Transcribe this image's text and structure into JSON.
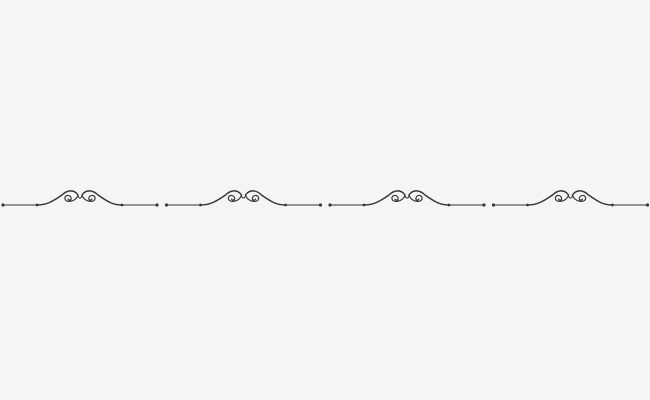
{
  "ornament": {
    "type": "decorative-scroll-divider",
    "segment_count": 4,
    "line_color": "#3a3435",
    "background_color": "#f5f5f5"
  }
}
